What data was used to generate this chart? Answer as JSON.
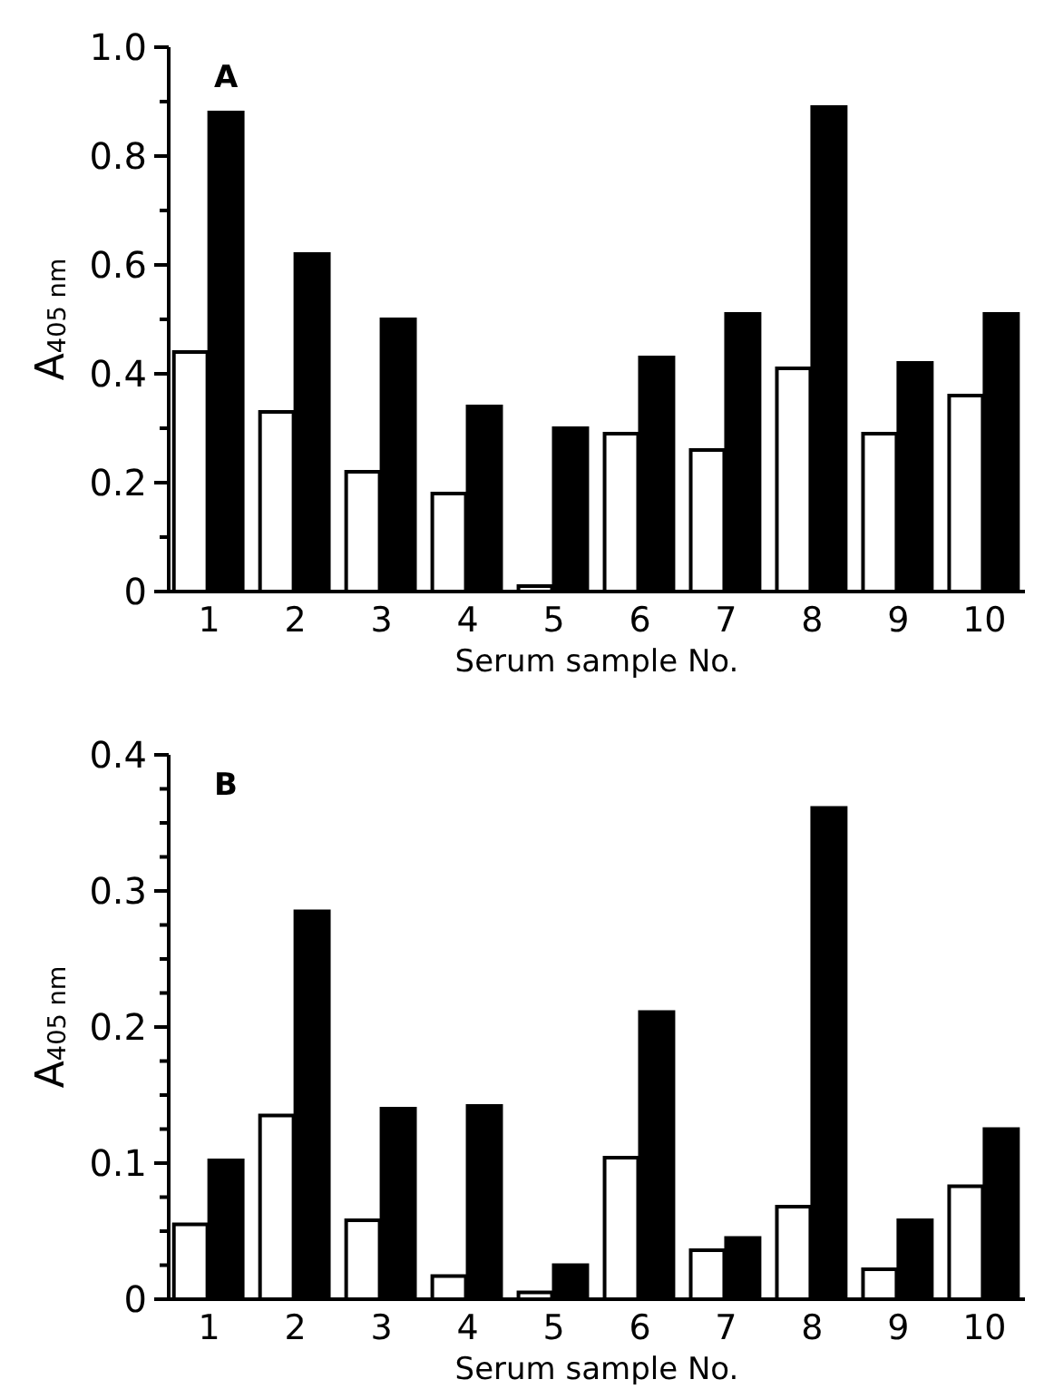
{
  "chart_data": [
    {
      "type": "bar",
      "xlabel": "Serum sample No.",
      "ylabel": "A$_{405 nm}$",
      "annotations": [
        "A"
      ],
      "categories": [
        "1",
        "2",
        "3",
        "4",
        "5",
        "6",
        "7",
        "8",
        "9",
        "10"
      ],
      "series": [
        {
          "color": "#ffffff",
          "values": [
            0.44,
            0.33,
            0.22,
            0.18,
            0.01,
            0.29,
            0.26,
            0.41,
            0.29,
            0.36
          ]
        },
        {
          "color": "#000000",
          "values": [
            0.88,
            0.62,
            0.5,
            0.34,
            0.3,
            0.43,
            0.51,
            0.89,
            0.42,
            0.51
          ]
        }
      ],
      "ylim": [
        0,
        1.0
      ],
      "yticks": [
        0,
        {
          "value": 0.1,
          "label": null
        },
        0.2,
        {
          "value": 0.3,
          "label": null
        },
        0.4,
        {
          "value": 0.5,
          "label": null
        },
        0.6,
        {
          "value": 0.7,
          "label": null
        },
        0.8,
        {
          "value": 0.9,
          "label": null
        },
        {
          "value": 1.0,
          "label": "1.0"
        }
      ],
      "grid": false
    },
    {
      "type": "bar",
      "xlabel": "Serum sample No.",
      "ylabel": "A$_{405 nm}$",
      "annotations": [
        "B"
      ],
      "categories": [
        "1",
        "2",
        "3",
        "4",
        "5",
        "6",
        "7",
        "8",
        "9",
        "10"
      ],
      "series": [
        {
          "color": "#ffffff",
          "values": [
            0.055,
            0.135,
            0.058,
            0.017,
            0.005,
            0.104,
            0.036,
            0.068,
            0.022,
            0.083
          ]
        },
        {
          "color": "#000000",
          "values": [
            0.102,
            0.285,
            0.14,
            0.142,
            0.025,
            0.211,
            0.045,
            0.361,
            0.058,
            0.125
          ]
        }
      ],
      "ylim": [
        0,
        0.4
      ],
      "yticks": [
        0,
        {
          "value": 0.025,
          "label": null
        },
        {
          "value": 0.05,
          "label": null
        },
        {
          "value": 0.075,
          "label": null
        },
        0.1,
        {
          "value": 0.125,
          "label": null
        },
        {
          "value": 0.15,
          "label": null
        },
        {
          "value": 0.175,
          "label": null
        },
        0.2,
        {
          "value": 0.225,
          "label": null
        },
        {
          "value": 0.25,
          "label": null
        },
        {
          "value": 0.275,
          "label": null
        },
        0.3,
        {
          "value": 0.325,
          "label": null
        },
        {
          "value": 0.35,
          "label": null
        },
        {
          "value": 0.375,
          "label": null
        },
        0.4
      ],
      "grid": false
    }
  ]
}
